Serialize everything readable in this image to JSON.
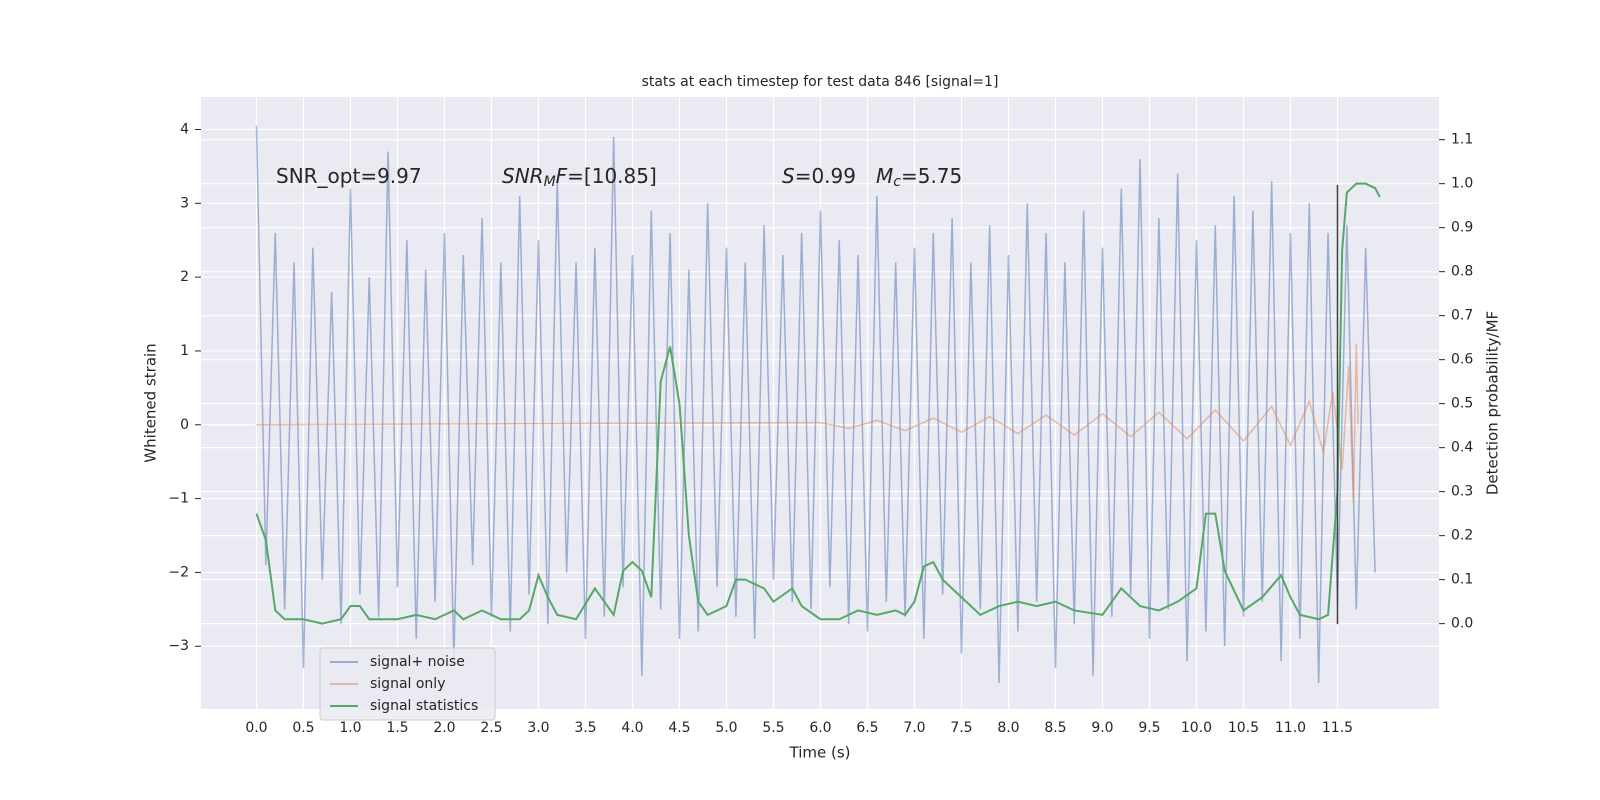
{
  "chart_data": {
    "type": "line",
    "title": "stats at each timestep for test data 846 [signal=1]",
    "xlabel": "Time (s)",
    "ylabel": "Whitened strain",
    "y2label": "Detection probability/MF",
    "background": "#eaeaf2",
    "grid": true,
    "legend": "lower left",
    "xlim": [
      -0.59,
      12.58
    ],
    "xticks": [
      {
        "value": 0,
        "label": "0.0"
      },
      0.5,
      {
        "value": 1,
        "label": "1.0"
      },
      1.5,
      {
        "value": 2,
        "label": "2.0"
      },
      2.5,
      {
        "value": 3,
        "label": "3.0"
      },
      3.5,
      {
        "value": 4,
        "label": "4.0"
      },
      4.5,
      {
        "value": 5,
        "label": "5.0"
      },
      5.5,
      {
        "value": 6,
        "label": "6.0"
      },
      6.5,
      {
        "value": 7,
        "label": "7.0"
      },
      7.5,
      {
        "value": 8,
        "label": "8.0"
      },
      8.5,
      {
        "value": 9,
        "label": "9.0"
      },
      9.5,
      {
        "value": 10,
        "label": "10.0"
      },
      10.5,
      {
        "value": 11,
        "label": "11.0"
      },
      11.5
    ],
    "ylim": [
      -3.85,
      4.44
    ],
    "yticks": [
      {
        "value": -3,
        "label": "−3"
      },
      {
        "value": -2,
        "label": "−2"
      },
      {
        "value": -1,
        "label": "−1"
      },
      0,
      1,
      2,
      3,
      4
    ],
    "y2lim": [
      -0.194,
      1.197
    ],
    "y2ticks": [
      {
        "value": 0,
        "label": "0.0"
      },
      0.1,
      0.2,
      0.3,
      0.4,
      0.5,
      0.6,
      0.7,
      0.8,
      0.9,
      {
        "value": 1,
        "label": "1.0"
      },
      1.1
    ],
    "series": [
      {
        "name": "signal+ noise",
        "color": "#4c72b0",
        "alpha": 0.5,
        "x": [
          0.0,
          0.1,
          0.2,
          0.3,
          0.4,
          0.5,
          0.6,
          0.7,
          0.8,
          0.9,
          1.0,
          1.1,
          1.2,
          1.3,
          1.4,
          1.5,
          1.6,
          1.7,
          1.8,
          1.9,
          2.0,
          2.1,
          2.2,
          2.3,
          2.4,
          2.5,
          2.6,
          2.7,
          2.8,
          2.9,
          3.0,
          3.1,
          3.2,
          3.3,
          3.4,
          3.5,
          3.6,
          3.7,
          3.8,
          3.9,
          4.0,
          4.1,
          4.2,
          4.3,
          4.4,
          4.5,
          4.6,
          4.7,
          4.8,
          4.9,
          5.0,
          5.1,
          5.2,
          5.3,
          5.4,
          5.5,
          5.6,
          5.7,
          5.8,
          5.9,
          6.0,
          6.1,
          6.2,
          6.3,
          6.4,
          6.5,
          6.6,
          6.7,
          6.8,
          6.9,
          7.0,
          7.1,
          7.2,
          7.3,
          7.4,
          7.5,
          7.6,
          7.7,
          7.8,
          7.9,
          8.0,
          8.1,
          8.2,
          8.3,
          8.4,
          8.5,
          8.6,
          8.7,
          8.8,
          8.9,
          9.0,
          9.1,
          9.2,
          9.3,
          9.4,
          9.5,
          9.6,
          9.7,
          9.8,
          9.9,
          10.0,
          10.1,
          10.2,
          10.3,
          10.4,
          10.5,
          10.6,
          10.7,
          10.8,
          10.9,
          11.0,
          11.1,
          11.2,
          11.3,
          11.4,
          11.5,
          11.6,
          11.7,
          11.8,
          11.9
        ],
        "values": [
          4.05,
          -1.9,
          2.6,
          -2.5,
          2.2,
          -3.3,
          2.4,
          -2.1,
          1.8,
          -2.7,
          3.2,
          -2.3,
          2.0,
          -2.6,
          3.7,
          -2.2,
          2.5,
          -2.9,
          2.1,
          -2.4,
          2.6,
          -3.2,
          2.3,
          -1.9,
          2.8,
          -2.6,
          2.2,
          -2.8,
          3.1,
          -2.3,
          2.5,
          -2.7,
          3.3,
          -2.0,
          2.2,
          -2.9,
          2.4,
          -2.6,
          3.9,
          -2.2,
          2.3,
          -3.4,
          2.9,
          -2.5,
          2.6,
          -2.9,
          2.1,
          -2.8,
          3.0,
          -2.2,
          2.4,
          -2.6,
          2.2,
          -2.9,
          2.7,
          -2.1,
          2.3,
          -2.4,
          2.6,
          -2.5,
          2.9,
          -2.2,
          2.5,
          -2.7,
          2.3,
          -2.8,
          3.1,
          -2.4,
          2.2,
          -2.6,
          2.4,
          -2.9,
          2.6,
          -2.3,
          2.8,
          -3.1,
          2.2,
          -2.5,
          2.7,
          -3.5,
          2.3,
          -2.8,
          3.0,
          -2.4,
          2.6,
          -3.3,
          2.2,
          -2.7,
          2.9,
          -3.4,
          2.4,
          -2.6,
          3.2,
          -2.3,
          3.6,
          -2.9,
          2.8,
          -2.5,
          3.4,
          -3.2,
          2.5,
          -2.8,
          2.7,
          -3.0,
          3.1,
          -2.6,
          2.9,
          -2.4,
          3.3,
          -3.2,
          2.6,
          -2.9,
          3.0,
          -3.5,
          2.6,
          -2.4,
          2.7,
          -2.5,
          2.4,
          -2.0
        ]
      },
      {
        "name": "signal only",
        "color": "#dd8452",
        "alpha": 0.5,
        "x": [
          0,
          6.0,
          6.3,
          6.6,
          6.9,
          7.2,
          7.5,
          7.8,
          8.1,
          8.4,
          8.7,
          9.0,
          9.3,
          9.6,
          9.9,
          10.2,
          10.5,
          10.8,
          11.0,
          11.2,
          11.35,
          11.45,
          11.55,
          11.62,
          11.67,
          11.7,
          11.72
        ],
        "values": [
          0,
          0.03,
          -0.05,
          0.06,
          -0.08,
          0.09,
          -0.1,
          0.11,
          -0.12,
          0.13,
          -0.14,
          0.15,
          -0.16,
          0.17,
          -0.19,
          0.2,
          -0.22,
          0.25,
          -0.28,
          0.32,
          -0.38,
          0.45,
          -0.6,
          0.8,
          -1.05,
          1.1,
          0
        ]
      },
      {
        "name": "signal statistics",
        "color": "#55a868",
        "alpha": 1,
        "axis": "y2",
        "x": [
          0.0,
          0.1,
          0.2,
          0.3,
          0.5,
          0.7,
          0.9,
          1.0,
          1.1,
          1.2,
          1.5,
          1.7,
          1.9,
          2.0,
          2.1,
          2.2,
          2.4,
          2.6,
          2.8,
          2.9,
          3.0,
          3.1,
          3.2,
          3.4,
          3.6,
          3.8,
          3.9,
          4.0,
          4.1,
          4.2,
          4.3,
          4.4,
          4.5,
          4.6,
          4.7,
          4.8,
          5.0,
          5.1,
          5.2,
          5.4,
          5.5,
          5.7,
          5.8,
          6.0,
          6.2,
          6.4,
          6.6,
          6.8,
          6.9,
          7.0,
          7.1,
          7.2,
          7.3,
          7.5,
          7.7,
          7.9,
          8.1,
          8.3,
          8.5,
          8.7,
          9.0,
          9.2,
          9.4,
          9.6,
          9.8,
          10.0,
          10.1,
          10.2,
          10.3,
          10.5,
          10.7,
          10.9,
          11.0,
          11.1,
          11.3,
          11.4,
          11.5,
          11.55,
          11.6,
          11.7,
          11.8,
          11.9,
          11.95
        ],
        "values": [
          0.25,
          0.19,
          0.03,
          0.01,
          0.01,
          0.0,
          0.01,
          0.04,
          0.04,
          0.01,
          0.01,
          0.02,
          0.01,
          0.02,
          0.03,
          0.01,
          0.03,
          0.01,
          0.01,
          0.03,
          0.11,
          0.06,
          0.02,
          0.01,
          0.08,
          0.02,
          0.12,
          0.14,
          0.12,
          0.06,
          0.55,
          0.63,
          0.5,
          0.2,
          0.05,
          0.02,
          0.04,
          0.1,
          0.1,
          0.08,
          0.05,
          0.08,
          0.04,
          0.01,
          0.01,
          0.03,
          0.02,
          0.03,
          0.02,
          0.05,
          0.13,
          0.14,
          0.1,
          0.06,
          0.02,
          0.04,
          0.05,
          0.04,
          0.05,
          0.03,
          0.02,
          0.08,
          0.04,
          0.03,
          0.05,
          0.08,
          0.25,
          0.25,
          0.12,
          0.03,
          0.06,
          0.11,
          0.06,
          0.02,
          0.01,
          0.02,
          0.3,
          0.85,
          0.98,
          1.0,
          1.0,
          0.99,
          0.97
        ]
      }
    ],
    "vline": {
      "x": 11.5,
      "ymin": -2.7,
      "ymax": 3.25,
      "color": "#404040"
    },
    "annotations": [
      {
        "parts": [
          {
            "text": "SNR_opt=9.97"
          }
        ]
      },
      {
        "parts": [
          {
            "text": "SNR",
            "italic": true
          },
          {
            "text": "M",
            "italic": true,
            "sub": true
          },
          {
            "text": "F",
            "italic": true
          },
          {
            "text": "=[10.85]"
          }
        ]
      },
      {
        "parts": [
          {
            "text": "S",
            "italic": true
          },
          {
            "text": "=0.99"
          }
        ]
      },
      {
        "parts": [
          {
            "text": "M",
            "italic": true
          },
          {
            "text": "c",
            "italic": true,
            "sub": true
          },
          {
            "text": "=5.75"
          }
        ]
      }
    ]
  }
}
